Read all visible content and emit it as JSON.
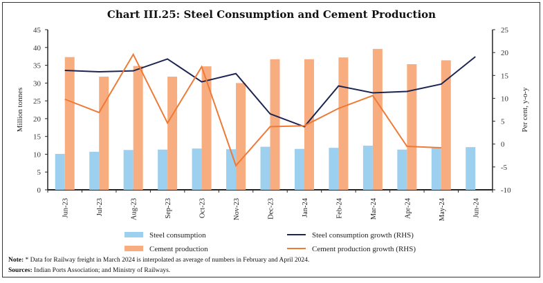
{
  "chart_data": {
    "type": "bar",
    "title": "Chart III.25: Steel Consumption and Cement Production",
    "ylabel": "Million tonnes",
    "y2label": "Per cent, y-o-y",
    "ylim": [
      0,
      45
    ],
    "y2lim": [
      -10,
      25
    ],
    "yticks": [
      0,
      5,
      10,
      15,
      20,
      25,
      30,
      35,
      40,
      45
    ],
    "y2ticks": [
      -10,
      -5,
      0,
      5,
      10,
      15,
      20,
      25
    ],
    "grid": false,
    "legend_position": "bottom",
    "categories": [
      "Jun-23",
      "Jul-23",
      "Aug-23",
      "Sep-23",
      "Oct-23",
      "Nov-23",
      "Dec-23",
      "Jan-24",
      "Feb-24",
      "Mar-24",
      "Apr-24",
      "May-24",
      "Jun-24"
    ],
    "series": [
      {
        "name": "Steel consumption",
        "type": "bar",
        "axis": "left",
        "color": "#9dcfee",
        "values": [
          10.1,
          10.7,
          11.2,
          11.3,
          11.6,
          11.4,
          12.1,
          11.5,
          11.8,
          12.4,
          11.3,
          11.9,
          12.0
        ]
      },
      {
        "name": "Cement production",
        "type": "bar",
        "axis": "left",
        "color": "#f8ad80",
        "values": [
          37.3,
          31.8,
          34.8,
          31.8,
          34.7,
          30.0,
          36.7,
          36.7,
          37.2,
          39.6,
          35.3,
          36.4,
          null
        ]
      },
      {
        "name": "Steel consumption growth (RHS)",
        "type": "line",
        "axis": "right",
        "color": "#1c2452",
        "values": [
          16.1,
          15.8,
          16.0,
          18.6,
          13.6,
          15.4,
          6.6,
          3.8,
          12.7,
          11.2,
          11.5,
          13.1,
          19.1
        ]
      },
      {
        "name": "Cement production growth (RHS)",
        "type": "line",
        "axis": "right",
        "color": "#ef7a35",
        "values": [
          9.8,
          6.9,
          19.6,
          4.6,
          16.9,
          -4.7,
          3.8,
          4.0,
          7.8,
          10.6,
          -0.5,
          -0.8,
          null
        ]
      }
    ]
  },
  "note_label": "Note:",
  "note_text": " * Data for Railway freight in March 2024 is interpolated as average of numbers in February and April 2024.",
  "sources_label": "Sources:",
  "sources_text": " Indian Ports Association; and Ministry of Railways."
}
